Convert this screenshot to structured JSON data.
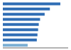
{
  "chart_data": {
    "type": "bar",
    "orientation": "horizontal",
    "categories": [
      null,
      null,
      null,
      null,
      null,
      null,
      null,
      null,
      null
    ],
    "values": [
      88,
      72,
      64,
      57,
      55,
      54,
      53,
      52,
      38
    ],
    "colors": [
      "#2f6db4",
      "#2f6db4",
      "#2f6db4",
      "#2f6db4",
      "#2f6db4",
      "#2f6db4",
      "#2f6db4",
      "#2f6db4",
      "#7bafd4"
    ],
    "xlim": [
      0,
      100
    ],
    "tick_labels": false
  }
}
